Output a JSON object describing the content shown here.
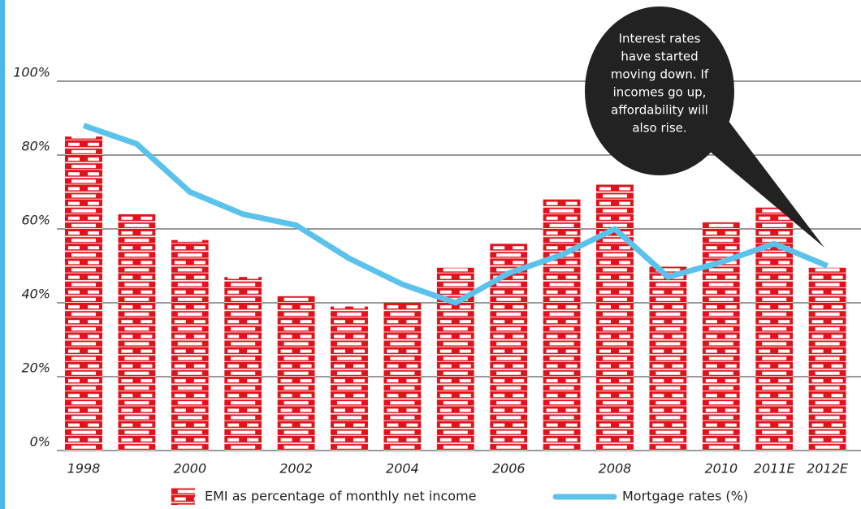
{
  "chart_data": {
    "type": "bar",
    "categories": [
      "1998",
      null,
      "2000",
      null,
      "2002",
      null,
      "2004",
      null,
      "2006",
      null,
      "2008",
      null,
      "2010",
      "2011E",
      "2012E"
    ],
    "series": [
      {
        "name": "EMI as percentage of monthly net income",
        "color": "#e0121b",
        "type": "bar",
        "values": [
          85,
          64,
          57,
          47,
          42,
          39,
          40,
          49.5,
          56,
          68,
          72,
          50,
          62,
          66,
          49.5
        ]
      },
      {
        "name": "Mortgage rates (%)",
        "color": "#5bc2ec",
        "type": "line",
        "values": [
          88,
          83,
          70,
          64,
          61,
          52,
          45,
          40,
          48,
          53,
          60,
          47,
          51,
          56,
          50
        ]
      }
    ],
    "ylim": [
      0,
      100
    ],
    "yticks": [
      {
        "value": 0,
        "label": "0%"
      },
      {
        "value": 20,
        "label": "20%"
      },
      {
        "value": 40,
        "label": "40%"
      },
      {
        "value": 60,
        "label": "60%"
      },
      {
        "value": 80,
        "label": "80%"
      },
      {
        "value": 100,
        "label": "100%"
      }
    ],
    "grid": true,
    "annotation": [
      "Interest rates",
      "have started",
      "moving down. If",
      "incomes go up,",
      "affordability will",
      "also rise."
    ]
  }
}
